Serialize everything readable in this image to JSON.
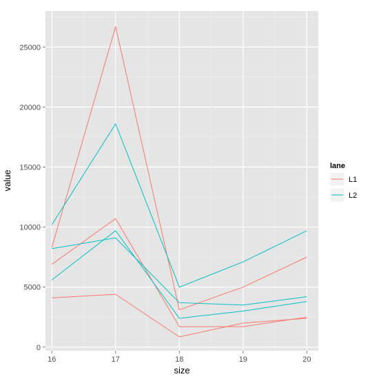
{
  "chart_data": {
    "type": "line",
    "xlabel": "size",
    "ylabel": "value",
    "x": [
      16,
      17,
      18,
      19,
      20
    ],
    "xlim": [
      15.9,
      20.18
    ],
    "ylim": [
      -300,
      28000
    ],
    "x_ticks": [
      16,
      17,
      18,
      19,
      20
    ],
    "y_ticks": [
      0,
      5000,
      10000,
      15000,
      20000,
      25000
    ],
    "grid": true,
    "legend": {
      "title": "lane",
      "position": "right",
      "entries": [
        {
          "name": "L1",
          "color": "#f8766d"
        },
        {
          "name": "L2",
          "color": "#00bfc4"
        }
      ]
    },
    "series": [
      {
        "lane": "L1",
        "color": "#f8766d",
        "values": [
          8300,
          26700,
          3100,
          5000,
          7500
        ]
      },
      {
        "lane": "L1",
        "color": "#f8766d",
        "values": [
          6900,
          10700,
          1700,
          1700,
          2500
        ]
      },
      {
        "lane": "L1",
        "color": "#f8766d",
        "values": [
          4100,
          4400,
          850,
          2000,
          2400
        ]
      },
      {
        "lane": "L2",
        "color": "#00bfc4",
        "values": [
          10200,
          18600,
          5000,
          7100,
          9700
        ]
      },
      {
        "lane": "L2",
        "color": "#00bfc4",
        "values": [
          8200,
          9100,
          3700,
          3500,
          4200
        ]
      },
      {
        "lane": "L2",
        "color": "#00bfc4",
        "values": [
          5600,
          9700,
          2400,
          3000,
          3800
        ]
      }
    ]
  }
}
